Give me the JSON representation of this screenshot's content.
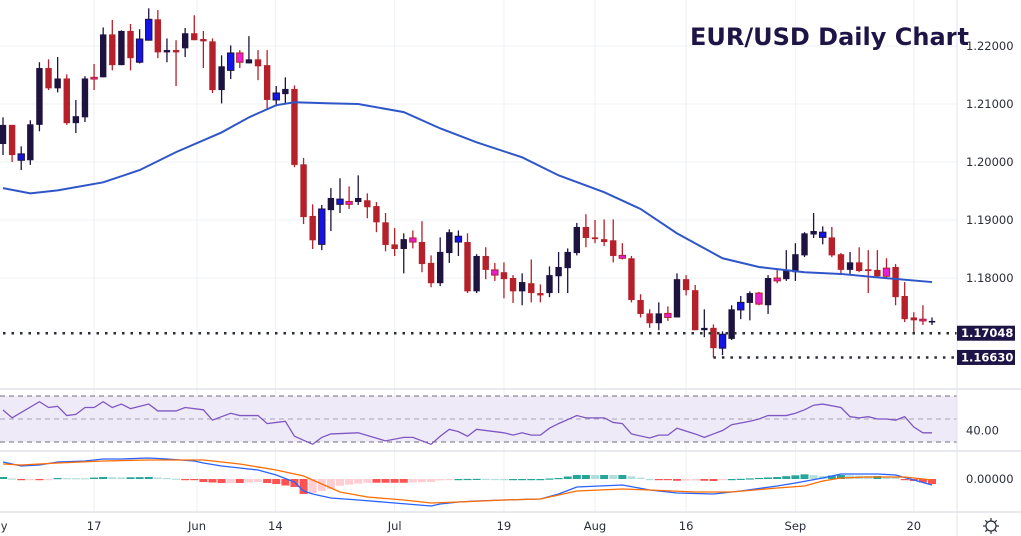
{
  "title": "EUR/USD Daily Chart",
  "price_axis": {
    "ticks": [
      {
        "text": "1.22000",
        "value": 1.22
      },
      {
        "text": "1.21000",
        "value": 1.21
      },
      {
        "text": "1.20000",
        "value": 1.2
      },
      {
        "text": "1.19000",
        "value": 1.19
      },
      {
        "text": "1.18000",
        "value": 1.18
      }
    ]
  },
  "price_tags": [
    {
      "text": "1.17048",
      "value": 1.17048,
      "line_from_index": 0
    },
    {
      "text": "1.16630",
      "value": 1.1663,
      "line_from_index": 78
    }
  ],
  "rsi_axis_label": {
    "text": "40.00",
    "value": 40
  },
  "macd_axis_label": {
    "text": "0.00000",
    "value": 0
  },
  "settings_icon": "gear-icon",
  "colors": {
    "bull": "#1d1240",
    "bear": "#b5202a",
    "bull_highlight": "#1414e6",
    "bear_highlight": "#e61ed6",
    "ma": "#2f56c8",
    "rsi": "#7e57c2",
    "rsi_band": "#efeaf8",
    "macd": "#2962ff",
    "signal": "#ff6d00",
    "hist_up_strong": "#26a69a",
    "hist_up_weak": "#b2dfdb",
    "hist_down_strong": "#ff5252",
    "hist_down_weak": "#ffcdd2",
    "tag_bg": "#1e1446",
    "grid": "#eef0f3"
  },
  "chart_data": {
    "type": "candlestick",
    "title": "EUR/USD Daily Chart",
    "ylim": [
      1.1605,
      1.2279
    ],
    "x_labels": [
      {
        "label": "May",
        "index": -0.8
      },
      {
        "label": "17",
        "index": 10
      },
      {
        "label": "Jun",
        "index": 21.3
      },
      {
        "label": "14",
        "index": 29.9
      },
      {
        "label": "Jul",
        "index": 43
      },
      {
        "label": "19",
        "index": 55
      },
      {
        "label": "Aug",
        "index": 65
      },
      {
        "label": "16",
        "index": 75
      },
      {
        "label": "Sep",
        "index": 87
      },
      {
        "label": "20",
        "index": 100
      }
    ],
    "candles_ohlc": [
      [
        1.2031,
        1.2077,
        1.2012,
        1.2064
      ],
      [
        1.2064,
        1.2064,
        1.2,
        1.2012
      ],
      [
        1.2003,
        1.2027,
        1.1986,
        1.2014
      ],
      [
        1.2003,
        1.2072,
        1.1995,
        1.2065
      ],
      [
        1.2064,
        1.2172,
        1.2053,
        1.2162
      ],
      [
        1.2162,
        1.2177,
        1.2124,
        1.2127
      ],
      [
        1.2127,
        1.2181,
        1.212,
        1.2144
      ],
      [
        1.2144,
        1.2151,
        1.2064,
        1.2067
      ],
      [
        1.2067,
        1.2107,
        1.205,
        1.2079
      ],
      [
        1.2077,
        1.2148,
        1.2069,
        1.2144
      ],
      [
        1.2146,
        1.2169,
        1.2124,
        1.2143
      ],
      [
        1.2146,
        1.2232,
        1.2146,
        1.222
      ],
      [
        1.222,
        1.2245,
        1.2158,
        1.2167
      ],
      [
        1.2167,
        1.2227,
        1.2167,
        1.2226
      ],
      [
        1.2226,
        1.2238,
        1.2158,
        1.2179
      ],
      [
        1.2172,
        1.2229,
        1.217,
        1.2212
      ],
      [
        1.221,
        1.2265,
        1.221,
        1.2246
      ],
      [
        1.2246,
        1.2262,
        1.2179,
        1.2189
      ],
      [
        1.2189,
        1.2213,
        1.2172,
        1.2193
      ],
      [
        1.2193,
        1.221,
        1.2131,
        1.2189
      ],
      [
        1.2196,
        1.2231,
        1.2181,
        1.2222
      ],
      [
        1.2222,
        1.2253,
        1.221,
        1.221
      ],
      [
        1.2212,
        1.2226,
        1.2162,
        1.2208
      ],
      [
        1.2208,
        1.2213,
        1.2119,
        1.2124
      ],
      [
        1.2124,
        1.2184,
        1.2101,
        1.2165
      ],
      [
        1.2158,
        1.2201,
        1.2143,
        1.2188
      ],
      [
        1.2188,
        1.2193,
        1.2162,
        1.2172
      ],
      [
        1.217,
        1.2217,
        1.217,
        1.2177
      ],
      [
        1.2177,
        1.2193,
        1.2141,
        1.2165
      ],
      [
        1.2167,
        1.2193,
        1.2091,
        1.2107
      ],
      [
        1.2107,
        1.2131,
        1.2096,
        1.2119
      ],
      [
        1.2117,
        1.2146,
        1.21,
        1.2126
      ],
      [
        1.2126,
        1.2132,
        1.1991,
        1.1995
      ],
      [
        1.1996,
        1.2007,
        1.1893,
        1.1905
      ],
      [
        1.1907,
        1.1927,
        1.185,
        1.1865
      ],
      [
        1.1858,
        1.1926,
        1.1848,
        1.1919
      ],
      [
        1.1917,
        1.1955,
        1.1881,
        1.1938
      ],
      [
        1.1927,
        1.1972,
        1.1912,
        1.1936
      ],
      [
        1.1932,
        1.1958,
        1.1919,
        1.1927
      ],
      [
        1.1931,
        1.1977,
        1.1926,
        1.1938
      ],
      [
        1.1934,
        1.1946,
        1.1903,
        1.1922
      ],
      [
        1.1924,
        1.1931,
        1.1879,
        1.1896
      ],
      [
        1.1896,
        1.1912,
        1.1846,
        1.1857
      ],
      [
        1.1858,
        1.1886,
        1.1838,
        1.185
      ],
      [
        1.185,
        1.1877,
        1.1808,
        1.1867
      ],
      [
        1.1869,
        1.1882,
        1.1851,
        1.1862
      ],
      [
        1.1862,
        1.1898,
        1.181,
        1.1824
      ],
      [
        1.1826,
        1.1839,
        1.1784,
        1.1791
      ],
      [
        1.1791,
        1.187,
        1.1786,
        1.1845
      ],
      [
        1.1843,
        1.1884,
        1.1826,
        1.1879
      ],
      [
        1.1862,
        1.1882,
        1.1838,
        1.1872
      ],
      [
        1.1862,
        1.1877,
        1.1774,
        1.1777
      ],
      [
        1.1777,
        1.1841,
        1.1774,
        1.1838
      ],
      [
        1.1838,
        1.1853,
        1.1798,
        1.1814
      ],
      [
        1.1814,
        1.1826,
        1.1795,
        1.1805
      ],
      [
        1.181,
        1.1827,
        1.1765,
        1.1798
      ],
      [
        1.18,
        1.1805,
        1.1757,
        1.1777
      ],
      [
        1.1777,
        1.1808,
        1.1753,
        1.1793
      ],
      [
        1.1791,
        1.1832,
        1.1758,
        1.1774
      ],
      [
        1.1774,
        1.1789,
        1.1758,
        1.177
      ],
      [
        1.1774,
        1.182,
        1.1767,
        1.1805
      ],
      [
        1.1803,
        1.1845,
        1.1774,
        1.1819
      ],
      [
        1.1817,
        1.1851,
        1.1774,
        1.1845
      ],
      [
        1.1843,
        1.1895,
        1.1839,
        1.1888
      ],
      [
        1.1888,
        1.191,
        1.1853,
        1.1869
      ],
      [
        1.187,
        1.19,
        1.186,
        1.1867
      ],
      [
        1.1867,
        1.1901,
        1.1855,
        1.1862
      ],
      [
        1.1865,
        1.1901,
        1.1827,
        1.1838
      ],
      [
        1.1839,
        1.186,
        1.1832,
        1.1834
      ],
      [
        1.1834,
        1.1838,
        1.1758,
        1.1762
      ],
      [
        1.1762,
        1.1772,
        1.1732,
        1.1738
      ],
      [
        1.1739,
        1.1746,
        1.1714,
        1.1722
      ],
      [
        1.1722,
        1.1758,
        1.171,
        1.1739
      ],
      [
        1.1739,
        1.1751,
        1.1726,
        1.1732
      ],
      [
        1.1732,
        1.1808,
        1.1732,
        1.1798
      ],
      [
        1.1798,
        1.1805,
        1.177,
        1.1779
      ],
      [
        1.1779,
        1.1788,
        1.171,
        1.171
      ],
      [
        1.171,
        1.1746,
        1.1698,
        1.1714
      ],
      [
        1.1714,
        1.172,
        1.1663,
        1.1679
      ],
      [
        1.1679,
        1.1708,
        1.1667,
        1.1703
      ],
      [
        1.1695,
        1.1753,
        1.1693,
        1.1746
      ],
      [
        1.1745,
        1.1769,
        1.1729,
        1.1758
      ],
      [
        1.1757,
        1.1777,
        1.1727,
        1.1774
      ],
      [
        1.1774,
        1.1776,
        1.1753,
        1.1755
      ],
      [
        1.1753,
        1.1805,
        1.1738,
        1.18
      ],
      [
        1.18,
        1.1814,
        1.1791,
        1.1795
      ],
      [
        1.1798,
        1.1848,
        1.1795,
        1.1814
      ],
      [
        1.181,
        1.186,
        1.1795,
        1.1841
      ],
      [
        1.1839,
        1.1879,
        1.1836,
        1.1877
      ],
      [
        1.1875,
        1.1912,
        1.1869,
        1.1881
      ],
      [
        1.187,
        1.1889,
        1.1858,
        1.1879
      ],
      [
        1.187,
        1.1888,
        1.1836,
        1.1839
      ],
      [
        1.1841,
        1.1843,
        1.1805,
        1.1814
      ],
      [
        1.1814,
        1.1845,
        1.1807,
        1.1827
      ],
      [
        1.1827,
        1.1853,
        1.181,
        1.1812
      ],
      [
        1.1815,
        1.1848,
        1.1774,
        1.1812
      ],
      [
        1.1814,
        1.1848,
        1.18,
        1.1803
      ],
      [
        1.1817,
        1.1834,
        1.18,
        1.1803
      ],
      [
        1.1819,
        1.1824,
        1.1753,
        1.1767
      ],
      [
        1.1769,
        1.1793,
        1.1724,
        1.1729
      ],
      [
        1.1732,
        1.1741,
        1.1705,
        1.1727
      ],
      [
        1.1729,
        1.1753,
        1.1719,
        1.1726
      ],
      [
        1.1726,
        1.1732,
        1.1719,
        1.1726
      ]
    ],
    "highlighted_indices": [
      2,
      10,
      15,
      16,
      25,
      26,
      30,
      35,
      37,
      38,
      45,
      50,
      54,
      68,
      73,
      79,
      81,
      83,
      85,
      90,
      97,
      101
    ],
    "moving_average": [
      [
        0,
        1.1955
      ],
      [
        3,
        1.1946
      ],
      [
        6,
        1.1951
      ],
      [
        11,
        1.1965
      ],
      [
        15,
        1.1986
      ],
      [
        19,
        1.2017
      ],
      [
        24,
        1.2051
      ],
      [
        27,
        1.2077
      ],
      [
        30,
        1.2098
      ],
      [
        32,
        1.2103
      ],
      [
        36,
        1.2101
      ],
      [
        39,
        1.21
      ],
      [
        44,
        1.2086
      ],
      [
        48,
        1.2058
      ],
      [
        52,
        1.2034
      ],
      [
        57,
        1.2008
      ],
      [
        61,
        1.1977
      ],
      [
        66,
        1.1948
      ],
      [
        70,
        1.1919
      ],
      [
        74,
        1.1877
      ],
      [
        79,
        1.1834
      ],
      [
        83,
        1.1819
      ],
      [
        88,
        1.181
      ],
      [
        92,
        1.1807
      ],
      [
        96,
        1.1801
      ],
      [
        102,
        1.1793
      ]
    ],
    "rsi": {
      "levels": [
        70,
        50,
        30
      ],
      "points": [
        [
          0,
          57.8
        ],
        [
          1,
          51
        ],
        [
          4,
          65
        ],
        [
          5,
          60
        ],
        [
          6,
          61
        ],
        [
          7,
          53
        ],
        [
          8,
          54
        ],
        [
          9,
          60
        ],
        [
          10,
          60
        ],
        [
          11,
          65
        ],
        [
          12,
          60
        ],
        [
          13,
          63
        ],
        [
          14,
          59
        ],
        [
          16,
          63
        ],
        [
          17,
          57
        ],
        [
          19,
          57
        ],
        [
          20,
          60
        ],
        [
          22,
          58
        ],
        [
          23,
          49
        ],
        [
          24,
          52
        ],
        [
          25,
          55
        ],
        [
          26,
          53
        ],
        [
          28,
          53
        ],
        [
          29,
          46
        ],
        [
          30,
          47
        ],
        [
          31,
          48
        ],
        [
          32,
          35
        ],
        [
          34,
          28
        ],
        [
          35,
          34
        ],
        [
          36,
          37
        ],
        [
          39,
          38
        ],
        [
          42,
          31
        ],
        [
          44,
          34
        ],
        [
          45,
          34
        ],
        [
          47,
          28
        ],
        [
          48,
          35
        ],
        [
          49,
          41
        ],
        [
          50,
          39
        ],
        [
          51,
          35
        ],
        [
          52,
          41
        ],
        [
          55,
          38
        ],
        [
          56,
          36
        ],
        [
          57,
          38
        ],
        [
          58,
          36
        ],
        [
          59,
          36
        ],
        [
          60,
          42
        ],
        [
          61,
          46
        ],
        [
          63,
          53
        ],
        [
          64,
          51
        ],
        [
          66,
          51
        ],
        [
          67,
          47
        ],
        [
          68,
          46
        ],
        [
          69,
          37
        ],
        [
          71,
          33.5
        ],
        [
          72,
          36
        ],
        [
          73,
          36
        ],
        [
          74,
          42
        ],
        [
          76,
          37
        ],
        [
          77,
          34
        ],
        [
          78,
          37
        ],
        [
          79,
          40
        ],
        [
          80,
          45
        ],
        [
          82,
          48
        ],
        [
          83,
          50
        ],
        [
          84,
          53
        ],
        [
          86,
          53
        ],
        [
          87,
          55
        ],
        [
          88,
          58
        ],
        [
          89,
          62
        ],
        [
          90,
          63
        ],
        [
          92,
          60
        ],
        [
          93,
          52
        ],
        [
          94,
          51
        ],
        [
          95,
          52
        ],
        [
          96,
          50
        ],
        [
          97,
          50
        ],
        [
          98,
          49
        ],
        [
          99,
          52
        ],
        [
          100,
          43
        ],
        [
          101,
          38
        ],
        [
          102,
          38
        ]
      ]
    },
    "macd": {
      "macd_line": [
        [
          0,
          0.0034
        ],
        [
          2,
          0.0026
        ],
        [
          4,
          0.0028
        ],
        [
          6,
          0.0034
        ],
        [
          9,
          0.0036
        ],
        [
          11,
          0.004
        ],
        [
          13,
          0.004
        ],
        [
          16,
          0.0042
        ],
        [
          18,
          0.004
        ],
        [
          21,
          0.0036
        ],
        [
          22,
          0.0032
        ],
        [
          24,
          0.0026
        ],
        [
          26,
          0.0022
        ],
        [
          28,
          0.0018
        ],
        [
          30,
          0.0008
        ],
        [
          32,
          -0.0006
        ],
        [
          33,
          -0.0024
        ],
        [
          34,
          -0.003
        ],
        [
          36,
          -0.0038
        ],
        [
          39,
          -0.0042
        ],
        [
          43,
          -0.0048
        ],
        [
          47,
          -0.0054
        ],
        [
          48,
          -0.005
        ],
        [
          50,
          -0.0046
        ],
        [
          52,
          -0.0044
        ],
        [
          55,
          -0.0042
        ],
        [
          59,
          -0.004
        ],
        [
          61,
          -0.003
        ],
        [
          63,
          -0.0016
        ],
        [
          68,
          -0.0012
        ],
        [
          71,
          -0.0022
        ],
        [
          74,
          -0.0028
        ],
        [
          78,
          -0.003
        ],
        [
          81,
          -0.0024
        ],
        [
          85,
          -0.0014
        ],
        [
          87,
          -0.0008
        ],
        [
          90,
          0.0002
        ],
        [
          92,
          0.001
        ],
        [
          96,
          0.001
        ],
        [
          98,
          0.0008
        ],
        [
          102,
          -0.0012
        ]
      ],
      "signal_line": [
        [
          0,
          0.003
        ],
        [
          2,
          0.0028
        ],
        [
          6,
          0.0032
        ],
        [
          11,
          0.0036
        ],
        [
          16,
          0.0038
        ],
        [
          22,
          0.0038
        ],
        [
          26,
          0.003
        ],
        [
          30,
          0.0018
        ],
        [
          33,
          0.0006
        ],
        [
          35,
          -0.001
        ],
        [
          37,
          -0.0026
        ],
        [
          40,
          -0.0036
        ],
        [
          44,
          -0.0042
        ],
        [
          47,
          -0.0048
        ],
        [
          50,
          -0.0046
        ],
        [
          55,
          -0.0042
        ],
        [
          59,
          -0.004
        ],
        [
          63,
          -0.0024
        ],
        [
          68,
          -0.002
        ],
        [
          71,
          -0.0022
        ],
        [
          76,
          -0.0026
        ],
        [
          80,
          -0.0026
        ],
        [
          85,
          -0.0018
        ],
        [
          88,
          -0.0014
        ],
        [
          90,
          -0.0004
        ],
        [
          92,
          0.0002
        ],
        [
          95,
          0.0004
        ],
        [
          99,
          0.0004
        ],
        [
          102,
          -0.0002
        ]
      ]
    }
  }
}
